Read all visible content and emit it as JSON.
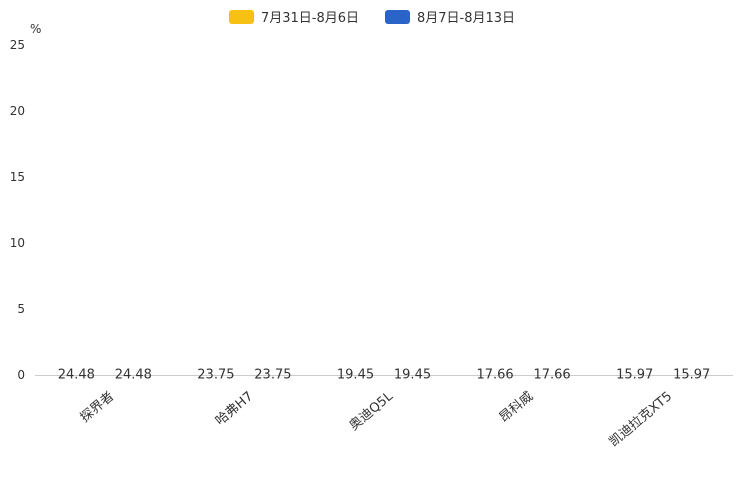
{
  "chart_data": {
    "type": "bar",
    "categories": [
      "探界者",
      "哈弗H7",
      "奥迪Q5L",
      "昂科威",
      "凯迪拉克XT5"
    ],
    "series": [
      {
        "name": "7月31日-8月6日",
        "color": "#F7C114",
        "values": [
          24.48,
          23.75,
          19.45,
          17.66,
          15.97
        ]
      },
      {
        "name": "8月7日-8月13日",
        "color": "#2B64C8",
        "values": [
          24.48,
          23.75,
          19.45,
          17.66,
          15.97
        ]
      }
    ],
    "title": "",
    "xlabel": "",
    "ylabel": "%",
    "ylim": [
      0,
      25
    ],
    "yticks": [
      0,
      5,
      10,
      15,
      20,
      25
    ],
    "grid": false,
    "legend_position": "top",
    "label_color": "#333333",
    "axis_line_color": "#cccccc"
  }
}
